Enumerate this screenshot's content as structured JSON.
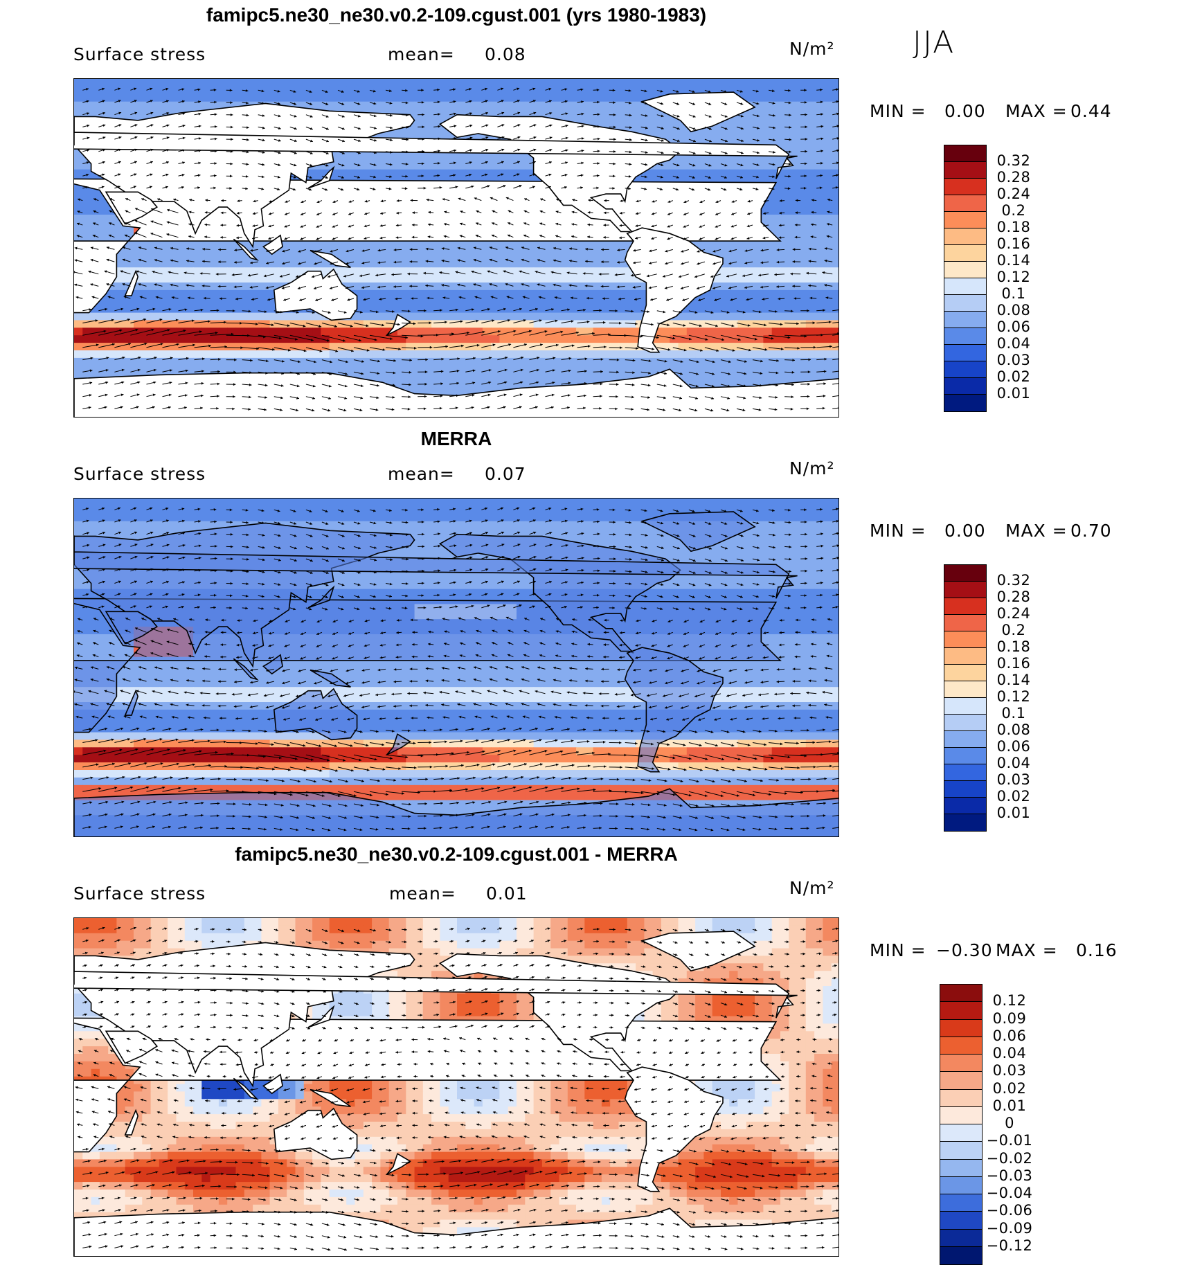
{
  "season": "JJA",
  "panels": [
    {
      "id": "model",
      "title": "famipc5.ne30_ne30.v0.2-109.cgust.001 (yrs 1980-1983)",
      "variable": "Surface stress",
      "mean_label": "mean=",
      "mean_value": "0.08",
      "units": "N/m²",
      "min_label": "MIN =",
      "min_value": "0.00",
      "max_label": "MAX =",
      "max_value": "0.44",
      "colorbar_labels": [
        "0.32",
        "0.28",
        "0.24",
        "0.2",
        "0.18",
        "0.16",
        "0.14",
        "0.12",
        "0.1",
        "0.08",
        "0.06",
        "0.04",
        "0.03",
        "0.02",
        "0.01"
      ]
    },
    {
      "id": "obs",
      "title": "MERRA",
      "variable": "Surface stress",
      "mean_label": "mean=",
      "mean_value": "0.07",
      "units": "N/m²",
      "min_label": "MIN =",
      "min_value": "0.00",
      "max_label": "MAX =",
      "max_value": "0.70",
      "colorbar_labels": [
        "0.32",
        "0.28",
        "0.24",
        "0.2",
        "0.18",
        "0.16",
        "0.14",
        "0.12",
        "0.1",
        "0.08",
        "0.06",
        "0.04",
        "0.03",
        "0.02",
        "0.01"
      ]
    },
    {
      "id": "diff",
      "title": "famipc5.ne30_ne30.v0.2-109.cgust.001 - MERRA",
      "variable": "Surface stress",
      "mean_label": "mean=",
      "mean_value": "0.01",
      "units": "N/m²",
      "min_label": "MIN =",
      "min_value": "−0.30",
      "max_label": "MAX =",
      "max_value": "0.16",
      "colorbar_labels": [
        "0.12",
        "0.09",
        "0.06",
        "0.04",
        "0.03",
        "0.02",
        "0.01",
        "0",
        "−0.01",
        "−0.02",
        "−0.03",
        "−0.04",
        "−0.06",
        "−0.09",
        "−0.12"
      ]
    }
  ],
  "colors": {
    "abs_scale": [
      "#67000d",
      "#a50f15",
      "#d7301f",
      "#ef6548",
      "#fc8d59",
      "#fdbb84",
      "#fdd49e",
      "#fee8c8",
      "#d6e6fb",
      "#b5cdf5",
      "#86acef",
      "#5a8ae8",
      "#3366e0",
      "#1744c8",
      "#0a2aa8",
      "#001a80"
    ],
    "diff_scale": [
      "#8b0d0d",
      "#b51a12",
      "#d93a1a",
      "#ec6030",
      "#f38860",
      "#f6a888",
      "#fbcfb5",
      "#fde9dc",
      "#dce8fa",
      "#bcd2f5",
      "#95b7ef",
      "#6b96e6",
      "#3d6ddc",
      "#1f48c4",
      "#0b2a98",
      "#001770"
    ],
    "land": "#ffffff",
    "coast": "#000000"
  }
}
